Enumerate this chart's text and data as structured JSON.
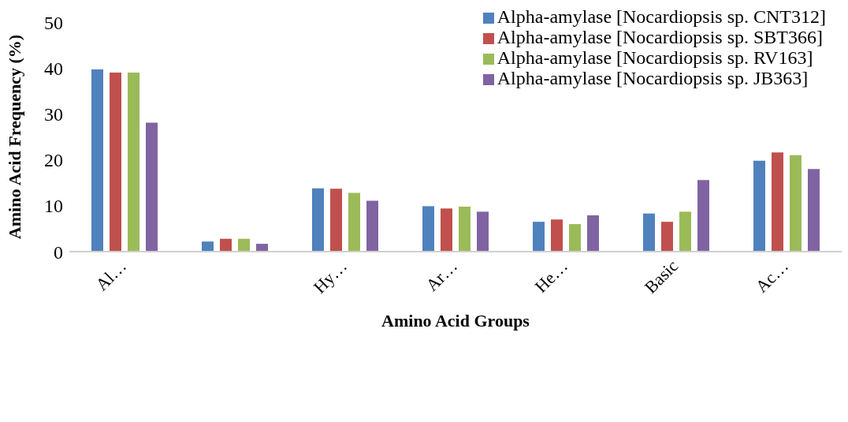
{
  "chart_data": {
    "type": "bar",
    "xlabel": "Amino Acid Groups",
    "ylabel": "Amino Acid Frequency (%)",
    "categories": [
      "Al…",
      null,
      "Hy…",
      "Ar…",
      "He…",
      "Basic",
      "Ac…"
    ],
    "series": [
      {
        "name": "Alpha-amylase [Nocardiopsis sp. CNT312]",
        "color": "#4f81bd",
        "values": [
          39.7,
          2.2,
          13.8,
          9.9,
          6.5,
          8.3,
          19.8
        ]
      },
      {
        "name": "Alpha-amylase [Nocardiopsis sp. SBT366]",
        "color": "#c0504d",
        "values": [
          39.0,
          2.8,
          13.7,
          9.4,
          7.0,
          6.5,
          21.6
        ]
      },
      {
        "name": "Alpha-amylase [Nocardiopsis sp. RV163]",
        "color": "#9bbb59",
        "values": [
          39.0,
          2.8,
          12.8,
          9.8,
          6.0,
          8.7,
          21.0
        ]
      },
      {
        "name": "Alpha-amylase [Nocardiopsis sp. JB363]",
        "color": "#8064a2",
        "values": [
          28.1,
          1.7,
          11.1,
          8.7,
          7.9,
          15.6,
          18.0
        ]
      }
    ],
    "ylim": [
      0,
      50
    ],
    "yticks": [
      0,
      10,
      20,
      30,
      40,
      50
    ],
    "grid": false,
    "legend": "top right"
  }
}
